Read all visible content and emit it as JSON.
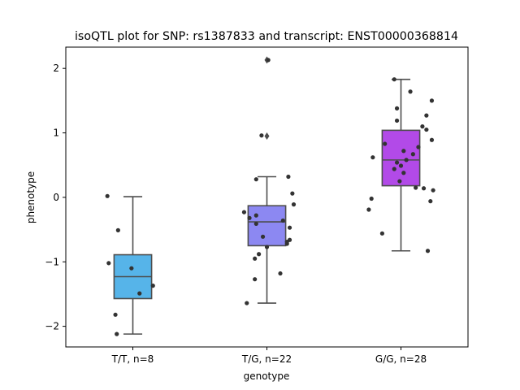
{
  "chart_data": {
    "type": "box",
    "title": "isoQTL plot for SNP: rs1387833 and transcript: ENST00000368814",
    "xlabel": "genotype",
    "ylabel": "phenotype",
    "ylim": [
      -2.32,
      2.33
    ],
    "yticks": [
      -2,
      -1,
      0,
      1,
      2
    ],
    "yticklabels": [
      "−2",
      "−1",
      "0",
      "1",
      "2"
    ],
    "grid": false,
    "categories": [
      "T/T, n=8",
      "T/G, n=22",
      "G/G, n=28"
    ],
    "boxes": [
      {
        "label": "T/T, n=8",
        "color": "#56b4e9",
        "whisker_low": -2.12,
        "q1": -1.57,
        "median": -1.23,
        "q3": -0.89,
        "whisker_high": 0.01,
        "fliers": []
      },
      {
        "label": "T/G, n=22",
        "color": "#8c88f2",
        "whisker_low": -1.64,
        "q1": -0.75,
        "median": -0.38,
        "q3": -0.13,
        "whisker_high": 0.32,
        "fliers": [
          0.95,
          2.13
        ]
      },
      {
        "label": "G/G, n=28",
        "color": "#b24ae8",
        "whisker_low": -0.83,
        "q1": 0.18,
        "median": 0.58,
        "q3": 1.04,
        "whisker_high": 1.83,
        "fliers": []
      }
    ],
    "points": [
      [
        {
          "dx": -0.19,
          "y": 0.02
        },
        {
          "dx": -0.11,
          "y": -0.51
        },
        {
          "dx": -0.18,
          "y": -1.02
        },
        {
          "dx": -0.01,
          "y": -1.1
        },
        {
          "dx": 0.15,
          "y": -1.37
        },
        {
          "dx": 0.05,
          "y": -1.49
        },
        {
          "dx": -0.13,
          "y": -1.82
        },
        {
          "dx": -0.12,
          "y": -2.12
        }
      ],
      [
        {
          "dx": 0.01,
          "y": 2.13
        },
        {
          "dx": -0.04,
          "y": 0.96
        },
        {
          "dx": 0.16,
          "y": 0.32
        },
        {
          "dx": -0.08,
          "y": 0.28
        },
        {
          "dx": 0.19,
          "y": 0.06
        },
        {
          "dx": 0.2,
          "y": -0.11
        },
        {
          "dx": -0.17,
          "y": -0.23
        },
        {
          "dx": -0.08,
          "y": -0.28
        },
        {
          "dx": -0.13,
          "y": -0.32
        },
        {
          "dx": 0.12,
          "y": -0.36
        },
        {
          "dx": -0.08,
          "y": -0.41
        },
        {
          "dx": 0.17,
          "y": -0.47
        },
        {
          "dx": -0.03,
          "y": -0.61
        },
        {
          "dx": 0.17,
          "y": -0.66
        },
        {
          "dx": 0.15,
          "y": -0.72
        },
        {
          "dx": 0.0,
          "y": -0.77
        },
        {
          "dx": -0.06,
          "y": -0.88
        },
        {
          "dx": -0.09,
          "y": -0.95
        },
        {
          "dx": 0.1,
          "y": -1.18
        },
        {
          "dx": -0.09,
          "y": -1.27
        },
        {
          "dx": -0.15,
          "y": -1.64
        },
        {
          "dx": 0.15,
          "y": -0.69
        }
      ],
      [
        {
          "dx": -0.05,
          "y": 1.83
        },
        {
          "dx": 0.07,
          "y": 1.64
        },
        {
          "dx": 0.23,
          "y": 1.5
        },
        {
          "dx": -0.03,
          "y": 1.38
        },
        {
          "dx": 0.19,
          "y": 1.27
        },
        {
          "dx": -0.03,
          "y": 1.19
        },
        {
          "dx": 0.16,
          "y": 1.1
        },
        {
          "dx": 0.19,
          "y": 1.05
        },
        {
          "dx": 0.23,
          "y": 0.89
        },
        {
          "dx": -0.12,
          "y": 0.83
        },
        {
          "dx": 0.13,
          "y": 0.78
        },
        {
          "dx": 0.02,
          "y": 0.72
        },
        {
          "dx": 0.09,
          "y": 0.67
        },
        {
          "dx": -0.21,
          "y": 0.62
        },
        {
          "dx": 0.04,
          "y": 0.58
        },
        {
          "dx": -0.03,
          "y": 0.54
        },
        {
          "dx": 0.0,
          "y": 0.49
        },
        {
          "dx": -0.05,
          "y": 0.44
        },
        {
          "dx": 0.02,
          "y": 0.38
        },
        {
          "dx": -0.01,
          "y": 0.25
        },
        {
          "dx": 0.11,
          "y": 0.15
        },
        {
          "dx": 0.17,
          "y": 0.14
        },
        {
          "dx": 0.24,
          "y": 0.11
        },
        {
          "dx": 0.22,
          "y": -0.06
        },
        {
          "dx": -0.22,
          "y": -0.02
        },
        {
          "dx": -0.24,
          "y": -0.19
        },
        {
          "dx": -0.14,
          "y": -0.56
        },
        {
          "dx": 0.2,
          "y": -0.83
        }
      ]
    ],
    "point_color": "#333333",
    "line_color": "#4d4d4d"
  }
}
